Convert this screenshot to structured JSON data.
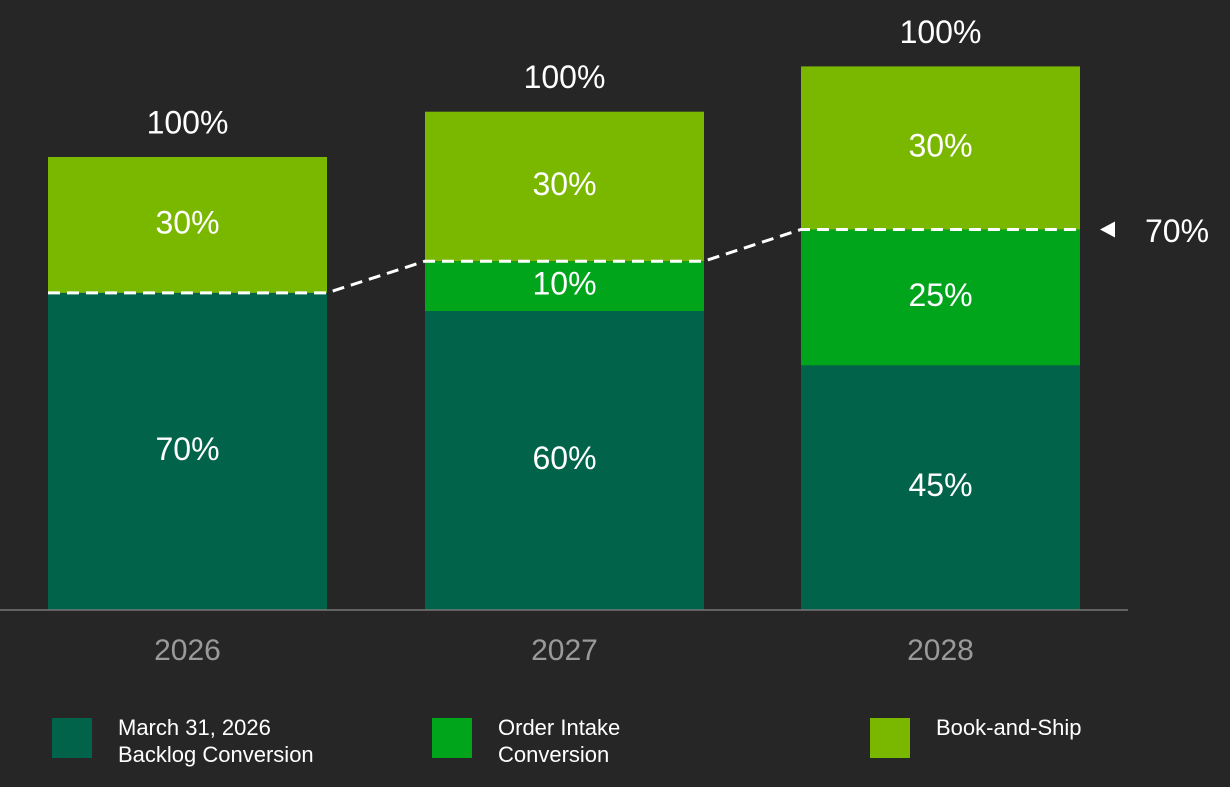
{
  "chart_data": {
    "type": "stacked_bar",
    "categories": [
      "2026",
      "2027",
      "2028"
    ],
    "relative_size": [
      1,
      1.1,
      1.2
    ],
    "ylim": [
      0,
      100
    ],
    "series": [
      {
        "name": "March 31, 2026 Backlog Conversion",
        "color": "#01634a",
        "values": [
          70,
          60,
          45
        ],
        "value_labels": [
          "70%",
          "60%",
          "45%"
        ]
      },
      {
        "name": "Order Intake Conversion",
        "color": "#00a51c",
        "values": [
          null,
          10,
          25
        ],
        "value_labels": [
          null,
          "10%",
          "25%"
        ]
      },
      {
        "name": "Book-and-Ship",
        "color": "#7ab800",
        "values": [
          30,
          30,
          30
        ],
        "value_labels": [
          "30%",
          "30%",
          "30%"
        ]
      }
    ],
    "totals": [
      100,
      100,
      100
    ],
    "total_labels": [
      "100%",
      "100%",
      "100%"
    ],
    "annotation": {
      "value": 70,
      "label": "70%"
    }
  }
}
